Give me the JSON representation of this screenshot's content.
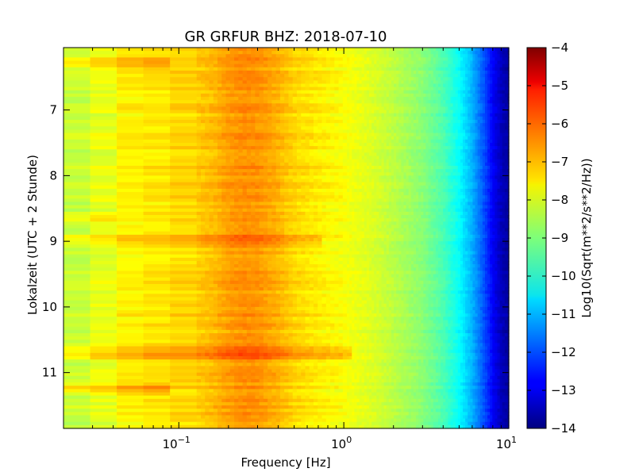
{
  "chart_data": {
    "type": "heatmap",
    "title": "GR GRFUR BHZ: 2018-07-10",
    "xlabel": "Frequency [Hz]",
    "ylabel": "Lokalzeit (UTC + 2 Stunde)",
    "x_scale": "log",
    "xlim": [
      0.02,
      10
    ],
    "x_ticks": [
      {
        "value": 0.1,
        "base": "10",
        "exp": "−1"
      },
      {
        "value": 1,
        "base": "10",
        "exp": "0"
      },
      {
        "value": 10,
        "base": "10",
        "exp": "1"
      }
    ],
    "ylim": [
      6.05,
      11.85
    ],
    "y_inverted": true,
    "y_ticks": [
      7,
      8,
      9,
      10,
      11
    ],
    "colorbar": {
      "label": "Log10(Sqrt(m**2/s**2/Hz))",
      "range": [
        -14,
        -4
      ],
      "ticks": [
        -4,
        -5,
        -6,
        -7,
        -8,
        -9,
        -10,
        -11,
        -12,
        -13,
        -14
      ],
      "colormap": "jet"
    },
    "spectrum_profile": {
      "frequency_hz": [
        0.02,
        0.03,
        0.04,
        0.06,
        0.08,
        0.12,
        0.16,
        0.2,
        0.25,
        0.3,
        0.4,
        0.5,
        0.7,
        1.0,
        1.5,
        2.0,
        3.0,
        4.0,
        5.0,
        6.0,
        7.0,
        8.0,
        9.0,
        10.0
      ],
      "log10_amplitude": [
        -8.3,
        -8.3,
        -7.7,
        -7.6,
        -7.5,
        -7.3,
        -7.1,
        -6.8,
        -6.65,
        -6.7,
        -7.0,
        -7.35,
        -7.6,
        -7.8,
        -8.1,
        -8.4,
        -8.9,
        -9.5,
        -10.2,
        -11.0,
        -11.9,
        -12.8,
        -13.4,
        -13.7
      ]
    },
    "row_events": [
      {
        "hour": 6.3,
        "f_max_hz": 0.075,
        "delta": 0.7
      },
      {
        "hour": 8.65,
        "f_max_hz": 0.04,
        "delta": 0.5
      },
      {
        "hour": 9.0,
        "f_max_hz": 0.75,
        "delta": 0.6
      },
      {
        "hour": 10.7,
        "f_max_hz": 1.1,
        "delta": 0.8
      },
      {
        "hour": 11.25,
        "f_max_hz": 0.08,
        "delta": 0.9
      }
    ]
  }
}
